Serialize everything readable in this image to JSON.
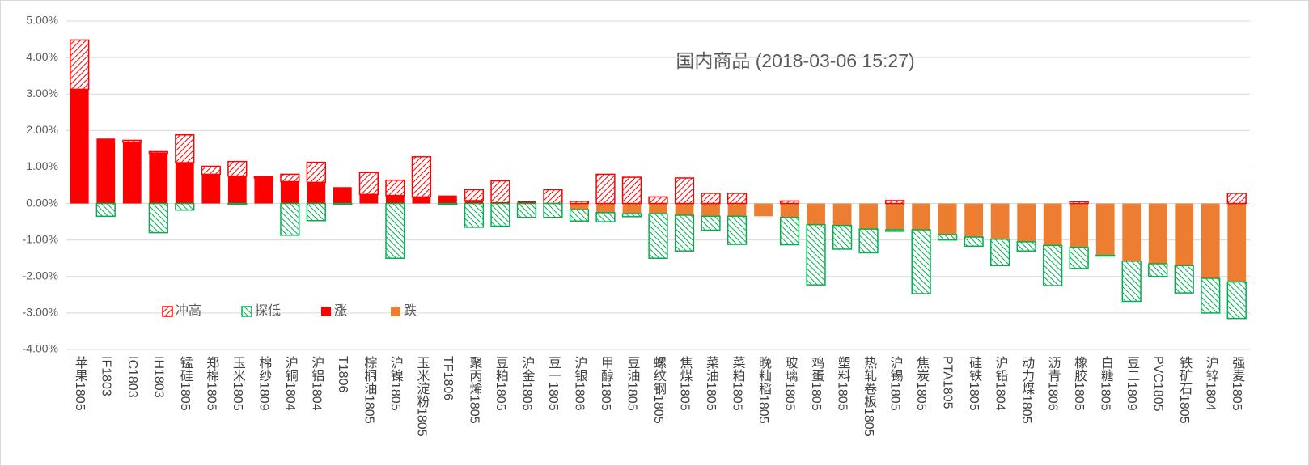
{
  "chart_data": {
    "type": "stacked_bar",
    "title": "国内商品 (2018-03-06 15:27)",
    "categories": [
      "苹果1805",
      "IF1803",
      "IC1803",
      "IH1803",
      "锰硅1805",
      "郑棉1805",
      "玉米1805",
      "棉纱1809",
      "沪铜1804",
      "沪铝1804",
      "T1806",
      "棕榈油1805",
      "沪镍1805",
      "玉米淀粉1805",
      "TF1806",
      "聚丙烯1805",
      "豆粕1805",
      "沪金1806",
      "豆一1805",
      "沪银1806",
      "甲醇1805",
      "豆油1805",
      "螺纹钢1805",
      "焦煤1805",
      "菜油1805",
      "菜粕1805",
      "晚籼稻1805",
      "玻璃1805",
      "鸡蛋1805",
      "塑料1805",
      "热轧卷板1805",
      "沪锡1805",
      "焦炭1805",
      "PTA1805",
      "硅铁1805",
      "沪铅1804",
      "动力煤1805",
      "沥青1806",
      "橡胶1805",
      "白糖1805",
      "豆二1809",
      "PVC1805",
      "铁矿石1805",
      "沪锌1804",
      "强麦1805"
    ],
    "series": [
      {
        "name": "冲高",
        "color": "#ff0000",
        "hatch": true,
        "values": [
          1.35,
          0,
          0.05,
          0.04,
          0.76,
          0.22,
          0.4,
          0.03,
          0.2,
          0.55,
          0,
          0.6,
          0.42,
          1.1,
          0,
          0.3,
          0.6,
          0,
          0.38,
          0.06,
          0.8,
          0.72,
          0.18,
          0.7,
          0.28,
          0.28,
          0,
          0.07,
          0,
          0,
          0,
          0.08,
          0,
          0,
          0,
          0,
          0,
          0,
          0.05,
          0,
          0,
          0,
          0,
          0,
          0.28
        ]
      },
      {
        "name": "探低",
        "color": "#00b050",
        "hatch": true,
        "values": [
          0,
          -0.35,
          0,
          -0.8,
          -0.18,
          0,
          -0.02,
          0,
          -0.87,
          -0.47,
          -0.02,
          0,
          -1.5,
          0,
          -0.02,
          -0.65,
          -0.62,
          -0.38,
          -0.38,
          -0.31,
          -0.25,
          -0.08,
          -1.22,
          -0.98,
          -0.38,
          -0.77,
          0,
          -0.75,
          -1.65,
          -0.65,
          -0.65,
          -0.04,
          -1.75,
          -0.15,
          -0.25,
          -0.72,
          -0.25,
          -1.1,
          -0.58,
          -0.02,
          -1.1,
          -0.35,
          -0.75,
          -0.95,
          -1.0
        ]
      },
      {
        "name": "涨",
        "color": "#ff0000",
        "hatch": false,
        "values": [
          3.13,
          1.78,
          1.68,
          1.38,
          1.12,
          0.8,
          0.75,
          0.7,
          0.6,
          0.58,
          0.45,
          0.25,
          0.22,
          0.18,
          0.22,
          0.08,
          0.02,
          0.06,
          0,
          0,
          0,
          0,
          0,
          0,
          0,
          0,
          0,
          0,
          0,
          0,
          0,
          0,
          0,
          0,
          0,
          0,
          0,
          0,
          0,
          0,
          0,
          0,
          0,
          0,
          0
        ]
      },
      {
        "name": "跌",
        "color": "#ed7d31",
        "hatch": false,
        "values": [
          0,
          0,
          0,
          0,
          0,
          0,
          0,
          0,
          0,
          0,
          0,
          0,
          0,
          0,
          0,
          0,
          0,
          0,
          0,
          -0.17,
          -0.25,
          -0.28,
          -0.28,
          -0.32,
          -0.35,
          -0.35,
          -0.35,
          -0.38,
          -0.58,
          -0.6,
          -0.7,
          -0.72,
          -0.72,
          -0.85,
          -0.92,
          -0.98,
          -1.05,
          -1.15,
          -1.2,
          -1.42,
          -1.58,
          -1.65,
          -1.7,
          -2.05,
          -2.15
        ]
      }
    ],
    "ylim": [
      -4,
      5
    ],
    "yticks": [
      {
        "value": -4,
        "label": "-4.00%"
      },
      {
        "value": -3,
        "label": "-3.00%"
      },
      {
        "value": -2,
        "label": "-2.00%"
      },
      {
        "value": -1,
        "label": "-1.00%"
      },
      {
        "value": 0,
        "label": "0.00%"
      },
      {
        "value": 1,
        "label": "1.00%"
      },
      {
        "value": 2,
        "label": "2.00%"
      },
      {
        "value": 3,
        "label": "3.00%"
      },
      {
        "value": 4,
        "label": "4.00%"
      },
      {
        "value": 5,
        "label": "5.00%"
      }
    ],
    "grid": true
  }
}
